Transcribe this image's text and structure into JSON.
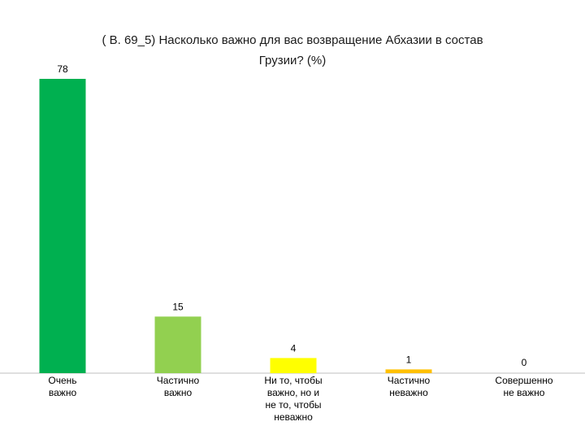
{
  "chart_data": {
    "type": "bar",
    "title_lines": [
      "( В. 69_5) Насколько важно для вас  возвращение Абхазии в состав",
      "Грузии? (%)"
    ],
    "categories": [
      [
        "Очень",
        "важно"
      ],
      [
        "Частично",
        "важно"
      ],
      [
        "Ни то, чтобы",
        "важно, но и",
        "не то,  чтобы",
        "неважно"
      ],
      [
        "Частично",
        "неважно"
      ],
      [
        "Совершенно",
        "не важно"
      ]
    ],
    "values": [
      78,
      15,
      4,
      1,
      0
    ],
    "colors": [
      "#00b050",
      "#92d050",
      "#ffff00",
      "#ffc000",
      "#c0504d"
    ],
    "data_labels": true,
    "grid": false,
    "legend": "none"
  }
}
